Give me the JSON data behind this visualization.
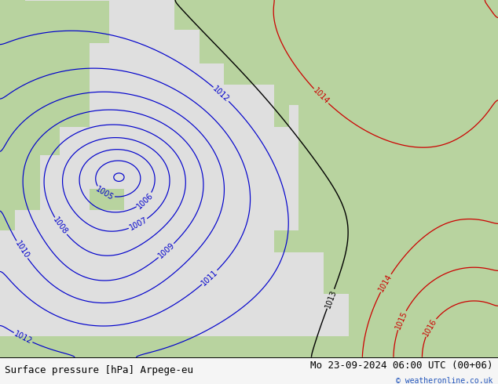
{
  "title_left": "Surface pressure [hPa] Arpege-eu",
  "title_right": "Mo 23-09-2024 06:00 UTC (00+06)",
  "watermark": "© weatheronline.co.uk",
  "sea_color": "#e0e0e0",
  "land_color": "#b8d4a0",
  "contour_color_blue": "#0000cc",
  "contour_color_black": "#000000",
  "contour_color_red": "#cc0000",
  "label_fontsize": 7.0,
  "title_fontsize": 9,
  "watermark_fontsize": 7,
  "bottom_bar_height": 0.07
}
